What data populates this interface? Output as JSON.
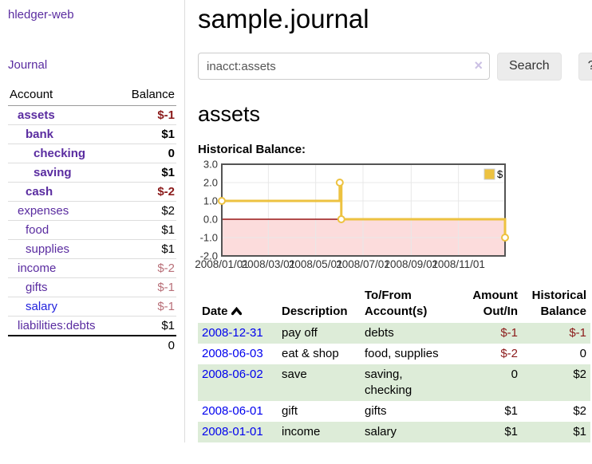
{
  "app": {
    "brand": "hledger-web"
  },
  "sidebar": {
    "nav_journal": "Journal",
    "accounts": {
      "header_account": "Account",
      "header_balance": "Balance",
      "rows": [
        {
          "name": "assets",
          "depth": 1,
          "bold": true,
          "link": "purple",
          "balance": "$-1",
          "balance_class": "neg"
        },
        {
          "name": "bank",
          "depth": 2,
          "bold": true,
          "link": "purple",
          "balance": "$1",
          "balance_class": "pos"
        },
        {
          "name": "checking",
          "depth": 3,
          "bold": true,
          "link": "purple",
          "balance": "0",
          "balance_class": "pos"
        },
        {
          "name": "saving",
          "depth": 3,
          "bold": true,
          "link": "purple",
          "balance": "$1",
          "balance_class": "pos"
        },
        {
          "name": "cash",
          "depth": 2,
          "bold": true,
          "link": "purple",
          "balance": "$-2",
          "balance_class": "neg"
        },
        {
          "name": "expenses",
          "depth": 1,
          "bold": false,
          "link": "purple",
          "balance": "$2",
          "balance_class": "pos"
        },
        {
          "name": "food",
          "depth": 2,
          "bold": false,
          "link": "purple",
          "balance": "$1",
          "balance_class": "pos"
        },
        {
          "name": "supplies",
          "depth": 2,
          "bold": false,
          "link": "purple",
          "balance": "$1",
          "balance_class": "pos"
        },
        {
          "name": "income",
          "depth": 1,
          "bold": false,
          "link": "purple",
          "balance": "$-2",
          "balance_class": "rose"
        },
        {
          "name": "gifts",
          "depth": 2,
          "bold": false,
          "link": "purple",
          "balance": "$-1",
          "balance_class": "rose"
        },
        {
          "name": "salary",
          "depth": 2,
          "bold": false,
          "link": "blue",
          "balance": "$-1",
          "balance_class": "rose"
        },
        {
          "name": "liabilities:debts",
          "depth": 1,
          "bold": false,
          "link": "purple",
          "balance": "$1",
          "balance_class": "pos"
        }
      ],
      "total": "0"
    }
  },
  "main": {
    "title": "sample.journal",
    "search": {
      "value": "inacct:assets",
      "clear_icon": "×",
      "search_label": "Search",
      "help_label": "?"
    },
    "account_heading": "assets",
    "section_label": "Historical Balance:",
    "register": {
      "headers": {
        "date": "Date",
        "description": "Description",
        "tofrom": "To/From\nAccount(s)",
        "amount": "Amount\nOut/In",
        "balance": "Historical\nBalance"
      },
      "rows": [
        {
          "date": "2008-12-31",
          "description": "pay off",
          "accounts": "debts",
          "amount": "$-1",
          "amount_neg": true,
          "balance": "$-1",
          "balance_neg": true
        },
        {
          "date": "2008-06-03",
          "description": "eat & shop",
          "accounts": "food, supplies",
          "amount": "$-2",
          "amount_neg": true,
          "balance": "0",
          "balance_neg": false
        },
        {
          "date": "2008-06-02",
          "description": "save",
          "accounts": "saving,\nchecking",
          "amount": "0",
          "amount_neg": false,
          "balance": "$2",
          "balance_neg": false
        },
        {
          "date": "2008-06-01",
          "description": "gift",
          "accounts": "gifts",
          "amount": "$1",
          "amount_neg": false,
          "balance": "$2",
          "balance_neg": false
        },
        {
          "date": "2008-01-01",
          "description": "income",
          "accounts": "salary",
          "amount": "$1",
          "amount_neg": false,
          "balance": "$1",
          "balance_neg": false
        }
      ]
    }
  },
  "chart_data": {
    "type": "line",
    "step": true,
    "title": "Historical Balance:",
    "series": [
      {
        "name": "$",
        "color": "#edc240",
        "points": [
          [
            "2008/01/01",
            1.0
          ],
          [
            "2008/06/01",
            2.0
          ],
          [
            "2008/06/03",
            0.0
          ],
          [
            "2008/12/31",
            -1.0
          ]
        ]
      }
    ],
    "ylim": [
      -2.0,
      3.0
    ],
    "yticks": [
      "3.0",
      "2.0",
      "1.0",
      "0.0",
      "-1.0",
      "-2.0"
    ],
    "xticks": [
      "2008/01/01",
      "2008/03/01",
      "2008/05/01",
      "2008/07/01",
      "2008/09/01",
      "2008/11/01"
    ],
    "x_range": [
      "2008/01/01",
      "2008/12/31"
    ],
    "grid": true,
    "legend": {
      "position": "top-right",
      "label": "$"
    },
    "colors": {
      "line": "#edc240",
      "marker_fill": "#ffffff",
      "negative_region": "#fcdcdc",
      "zero_line": "#991717",
      "gridline": "#e8e8e8",
      "border": "#545454",
      "tick_text": "#333333"
    }
  },
  "colors": {
    "accent_purple": "#5a2ca0",
    "link_blue": "#2222dd",
    "date_link_blue": "#0000ee",
    "negative_dark": "#8b1a1a",
    "negative_rose": "#b86f78",
    "row_stripe_green": "#ddecd8"
  }
}
